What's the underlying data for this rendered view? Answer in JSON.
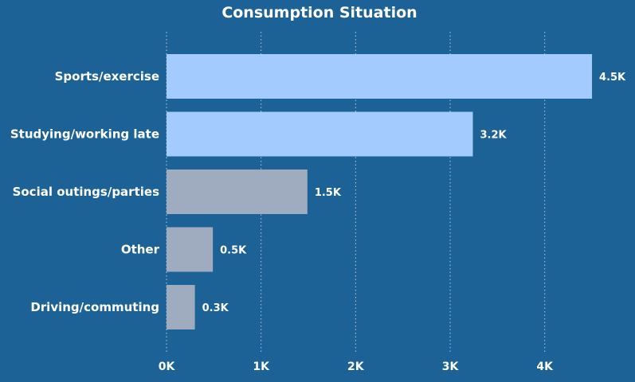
{
  "chart_data": {
    "type": "bar",
    "orientation": "horizontal",
    "title": "Consumption Situation",
    "categories": [
      "Sports/exercise",
      "Studying/working late",
      "Social outings/parties",
      "Other",
      "Driving/commuting"
    ],
    "values": [
      4500,
      3240,
      1490,
      490,
      300
    ],
    "data_labels": [
      "4.5K",
      "3.2K",
      "1.5K",
      "0.5K",
      "0.3K"
    ],
    "xticks": [
      0,
      1000,
      2000,
      3000,
      4000
    ],
    "xtick_labels": [
      "0K",
      "1K",
      "2K",
      "3K",
      "4K"
    ],
    "xlim": [
      0,
      4980
    ],
    "grid": true,
    "bar_colors": [
      "#a3cbfd",
      "#a3cbfd",
      "#9facc0",
      "#9facc0",
      "#9facc0"
    ]
  }
}
